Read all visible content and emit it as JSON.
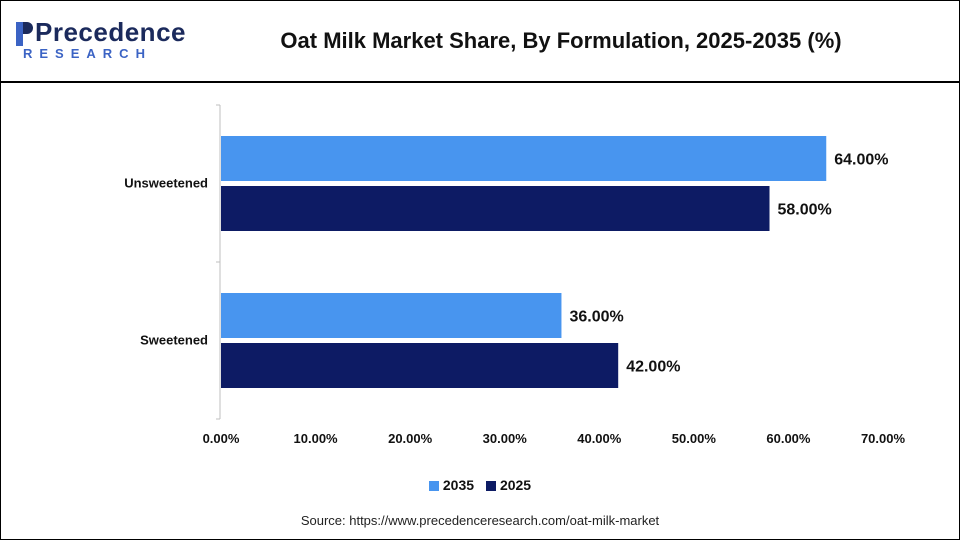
{
  "brand": {
    "name": "Precedence",
    "sub": "RESEARCH",
    "colors": {
      "name": "#1b2a5c",
      "sub": "#3b63c4"
    }
  },
  "header": {
    "title": "Oat Milk Market Share, By Formulation, 2025-2035 (%)"
  },
  "source": "Source: https://www.precedenceresearch.com/oat-milk-market",
  "chart_data": {
    "type": "bar",
    "orientation": "horizontal",
    "title": "Oat Milk Market Share, By Formulation, 2025-2035 (%)",
    "categories": [
      "Unsweetened",
      "Sweetened"
    ],
    "series": [
      {
        "name": "2035",
        "values": [
          64.0,
          36.0
        ],
        "labels": [
          "64.00%",
          "36.00%"
        ],
        "color": "#4895ef"
      },
      {
        "name": "2025",
        "values": [
          58.0,
          42.0
        ],
        "labels": [
          "58.00%",
          "42.00%"
        ],
        "color": "#0d1b64"
      }
    ],
    "xlim": [
      0,
      70
    ],
    "xticks": [
      0,
      10,
      20,
      30,
      40,
      50,
      60,
      70
    ],
    "xtick_labels": [
      "0.00%",
      "10.00%",
      "20.00%",
      "30.00%",
      "40.00%",
      "50.00%",
      "60.00%",
      "70.00%"
    ],
    "xlabel": "",
    "ylabel": "",
    "grid": false,
    "legend_position": "bottom"
  }
}
